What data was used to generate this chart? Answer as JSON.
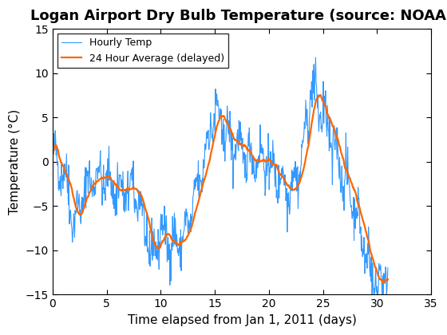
{
  "title": "Logan Airport Dry Bulb Temperature (source: NOAA)",
  "xlabel": "Time elapsed from Jan 1, 2011 (days)",
  "ylabel": "Temperature (°C)",
  "xlim": [
    0,
    35
  ],
  "ylim": [
    -15,
    15
  ],
  "xticks": [
    0,
    5,
    10,
    15,
    20,
    25,
    30,
    35
  ],
  "yticks": [
    -15,
    -10,
    -5,
    0,
    5,
    10,
    15
  ],
  "hourly_color": "#3399FF",
  "avg_color": "#FF6600",
  "hourly_label": "Hourly Temp",
  "avg_label": "24 Hour Average (delayed)",
  "hourly_linewidth": 0.8,
  "avg_linewidth": 1.6,
  "title_fontsize": 13,
  "label_fontsize": 11
}
